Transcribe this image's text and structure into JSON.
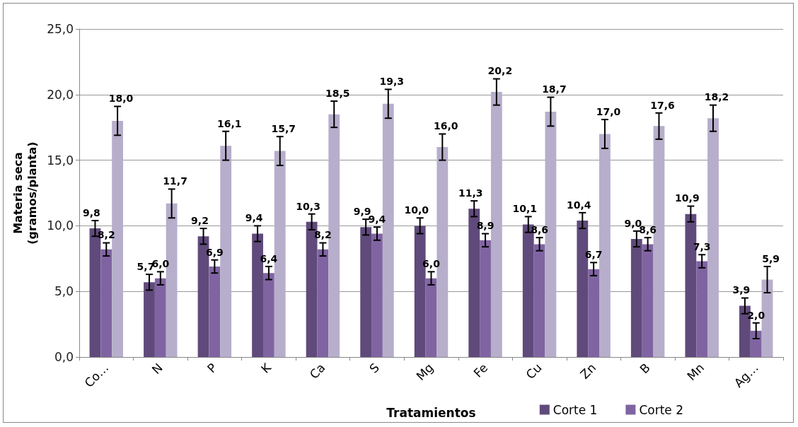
{
  "chart_data": {
    "type": "bar",
    "xlabel": "Tratamientos",
    "ylabel": "Materia seca\n(gramos/planta)",
    "categories": [
      "Co…",
      "N",
      "P",
      "K",
      "Ca",
      "S",
      "Mg",
      "Fe",
      "Cu",
      "Zn",
      "B",
      "Mn",
      "Ag…"
    ],
    "series": [
      {
        "name": "Corte 1",
        "color": "#604a7b",
        "values": [
          9.8,
          5.7,
          9.2,
          9.4,
          10.3,
          9.9,
          10.0,
          11.3,
          10.1,
          10.4,
          9.0,
          10.9,
          3.9
        ],
        "errors": [
          0.6,
          0.6,
          0.6,
          0.6,
          0.6,
          0.6,
          0.6,
          0.6,
          0.6,
          0.6,
          0.6,
          0.6,
          0.6
        ],
        "value_labels": [
          "9,8",
          "5,7",
          "9,2",
          "9,4",
          "10,3",
          "9,9",
          "10,0",
          "11,3",
          "10,1",
          "10,4",
          "9,0",
          "10,9",
          "3,9"
        ]
      },
      {
        "name": "Corte 2",
        "color": "#8064a2",
        "values": [
          8.2,
          6.0,
          6.9,
          6.4,
          8.2,
          9.4,
          6.0,
          8.9,
          8.6,
          6.7,
          8.6,
          7.3,
          2.0
        ],
        "errors": [
          0.5,
          0.5,
          0.5,
          0.5,
          0.5,
          0.5,
          0.5,
          0.5,
          0.5,
          0.5,
          0.5,
          0.5,
          0.6
        ],
        "value_labels": [
          "8,2",
          "6,0",
          "6,9",
          "6,4",
          "8,2",
          "9,4",
          "6,0",
          "8,9",
          "8,6",
          "6,7",
          "8,6",
          "7,3",
          "2,0"
        ]
      },
      {
        "color": "#b7aecb",
        "values": [
          18.0,
          11.7,
          16.1,
          15.7,
          18.5,
          19.3,
          16.0,
          20.2,
          18.7,
          17.0,
          17.6,
          18.2,
          5.9
        ],
        "errors": [
          1.1,
          1.1,
          1.1,
          1.1,
          1.0,
          1.1,
          1.0,
          1.0,
          1.1,
          1.1,
          1.0,
          1.0,
          1.0
        ],
        "value_labels": [
          "18,0",
          "11,7",
          "16,1",
          "15,7",
          "18,5",
          "19,3",
          "16,0",
          "20,2",
          "18,7",
          "17,0",
          "17,6",
          "18,2",
          "5,9"
        ]
      }
    ],
    "ylim": [
      0,
      25
    ],
    "yticks": [
      {
        "value": 0,
        "label": "0,0"
      },
      {
        "value": 5,
        "label": "5,0"
      },
      {
        "value": 10,
        "label": "10,0"
      },
      {
        "value": 15,
        "label": "15,0"
      },
      {
        "value": 20,
        "label": "20,0"
      },
      {
        "value": 25,
        "label": "25,0"
      }
    ],
    "grid": "y",
    "legend": "bottom right"
  }
}
